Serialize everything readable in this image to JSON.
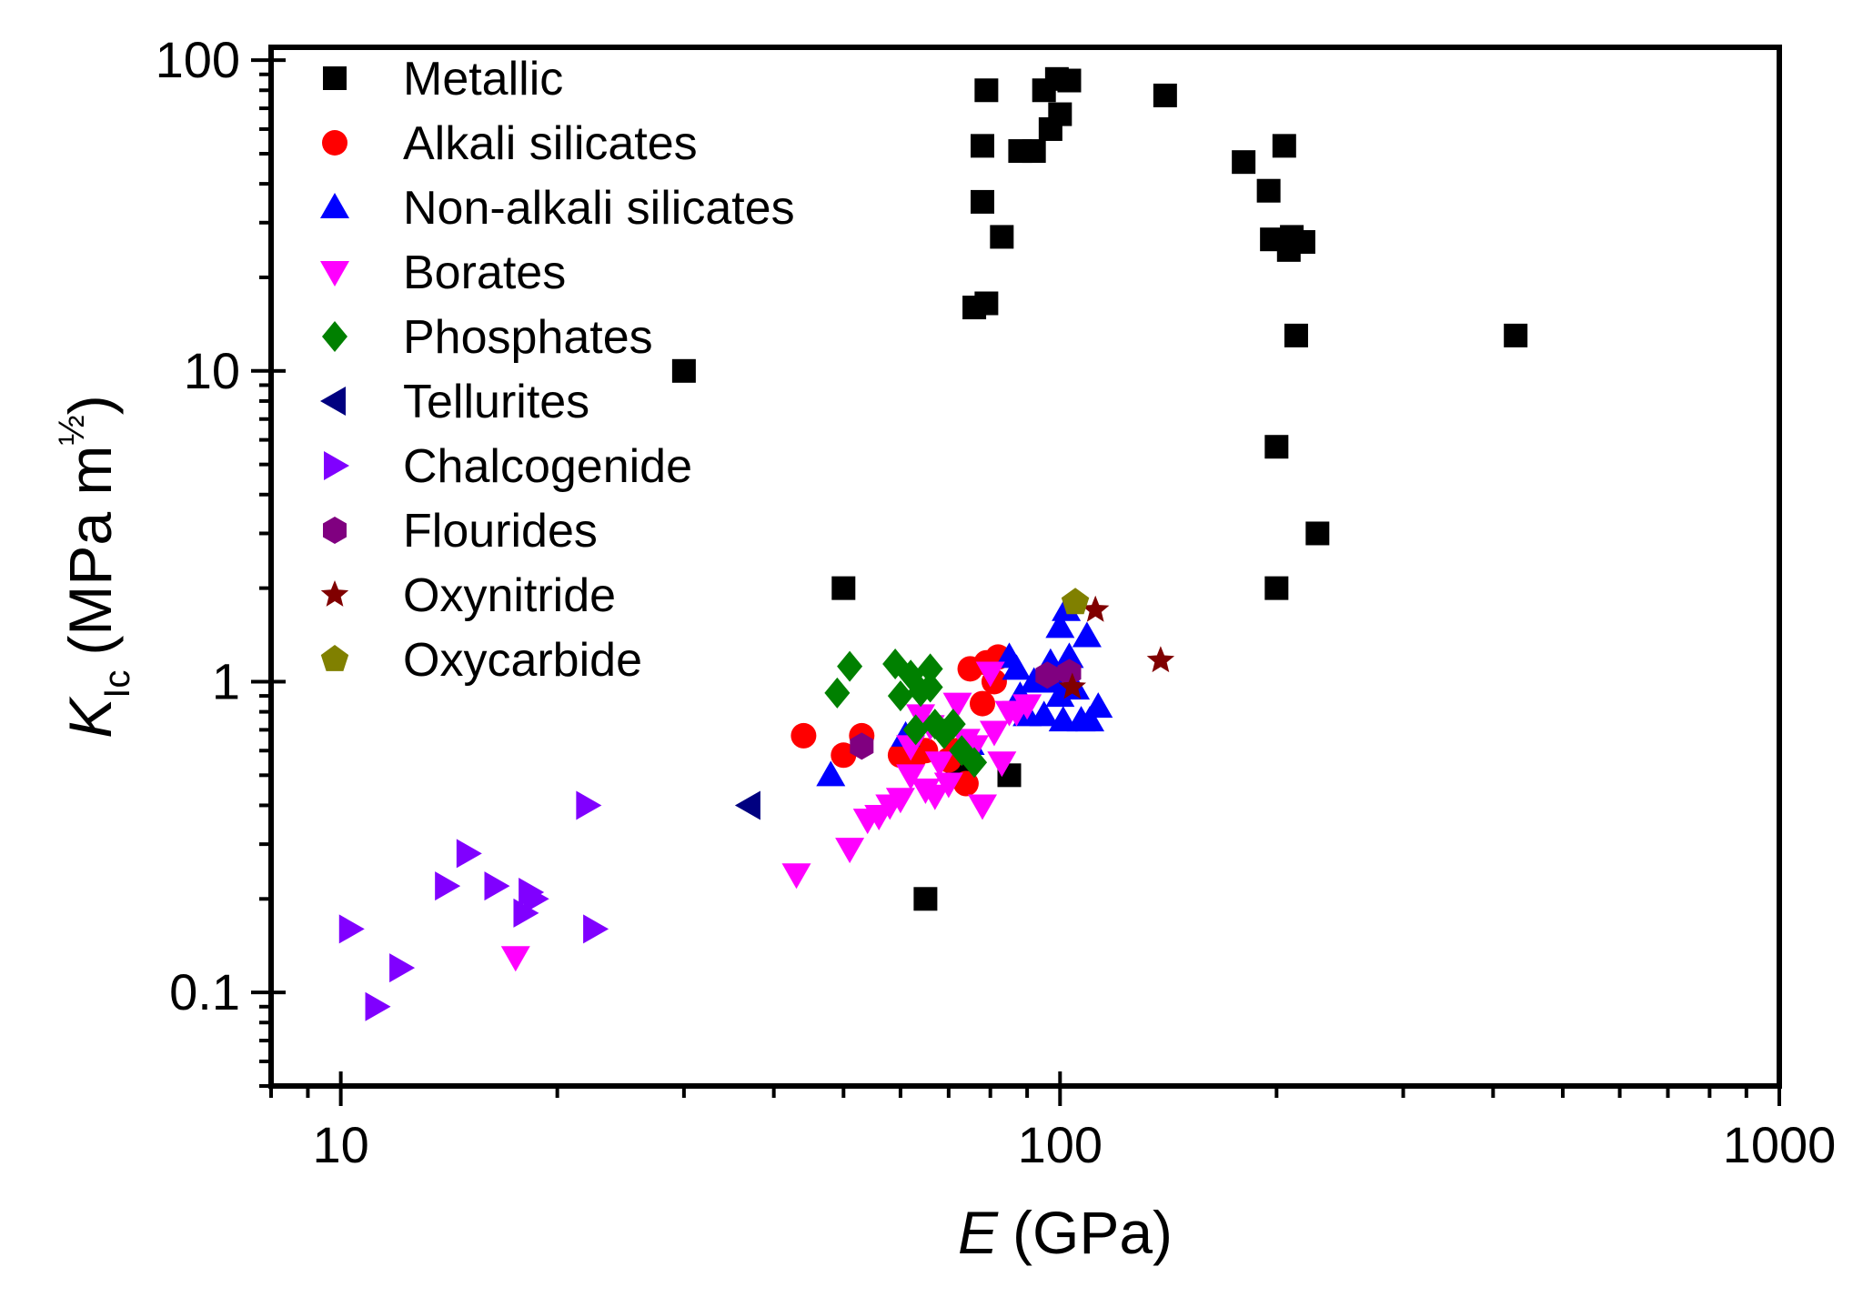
{
  "chart_data": {
    "type": "scatter",
    "title": "",
    "x_scale": "log",
    "y_scale": "log",
    "xlim": [
      8,
      1000
    ],
    "ylim": [
      0.05,
      110
    ],
    "xlabel": {
      "var": "E",
      "unit": "(GPa)"
    },
    "ylabel": {
      "var": "K",
      "sub": "Ic",
      "unit": "(MPa m",
      "exp": "½",
      "close": ")"
    },
    "x_ticks": [
      {
        "value": 10,
        "label": "10"
      },
      {
        "value": 100,
        "label": "100"
      },
      {
        "value": 1000,
        "label": "1000"
      }
    ],
    "y_ticks": [
      {
        "value": 0.1,
        "label": "0.1"
      },
      {
        "value": 1,
        "label": "1"
      },
      {
        "value": 10,
        "label": "10"
      },
      {
        "value": 100,
        "label": "100"
      }
    ],
    "legend_position": "top-left",
    "series": [
      {
        "name": "Metallic",
        "marker": "square",
        "color": "#000000",
        "points": [
          [
            30,
            10
          ],
          [
            50,
            2
          ],
          [
            65,
            0.2
          ],
          [
            76,
            16
          ],
          [
            79,
            16.5
          ],
          [
            78,
            35
          ],
          [
            78,
            53
          ],
          [
            79,
            80
          ],
          [
            83,
            27
          ],
          [
            88,
            51
          ],
          [
            92,
            51
          ],
          [
            95,
            80
          ],
          [
            97,
            60
          ],
          [
            99,
            87
          ],
          [
            100,
            67
          ],
          [
            103,
            86
          ],
          [
            140,
            77
          ],
          [
            180,
            47
          ],
          [
            195,
            38
          ],
          [
            197,
            26.5
          ],
          [
            200,
            5.7
          ],
          [
            200,
            2
          ],
          [
            205,
            53
          ],
          [
            208,
            24.5
          ],
          [
            210,
            27
          ],
          [
            213,
            13
          ],
          [
            218,
            26
          ],
          [
            228,
            3
          ],
          [
            430,
            13
          ],
          [
            85,
            0.5
          ],
          [
            72,
            0.55
          ]
        ]
      },
      {
        "name": "Alkali silicates",
        "marker": "circle",
        "color": "#ff0000",
        "points": [
          [
            44,
            0.67
          ],
          [
            50,
            0.58
          ],
          [
            53,
            0.67
          ],
          [
            60,
            0.58
          ],
          [
            63,
            0.58
          ],
          [
            65,
            0.6
          ],
          [
            70,
            0.56
          ],
          [
            72,
            0.6
          ],
          [
            74,
            0.47
          ],
          [
            75,
            1.1
          ],
          [
            78,
            0.85
          ],
          [
            79,
            1.15
          ],
          [
            81,
            1.0
          ],
          [
            82,
            1.2
          ]
        ]
      },
      {
        "name": "Non-alkali silicates",
        "marker": "triangle-up",
        "color": "#0000ff",
        "points": [
          [
            48,
            0.5
          ],
          [
            61,
            0.67
          ],
          [
            75,
            0.63
          ],
          [
            85,
            1.2
          ],
          [
            87,
            1.1
          ],
          [
            88,
            0.9
          ],
          [
            90,
            0.78
          ],
          [
            92,
            1.0
          ],
          [
            95,
            0.78
          ],
          [
            97,
            1.15
          ],
          [
            98,
            1.0
          ],
          [
            100,
            1.5
          ],
          [
            101,
            0.75
          ],
          [
            102,
            1.7
          ],
          [
            103,
            1.2
          ],
          [
            105,
            0.95
          ],
          [
            107,
            0.75
          ],
          [
            109,
            1.4
          ],
          [
            110,
            0.75
          ],
          [
            113,
            0.83
          ],
          [
            95,
            1.05
          ],
          [
            100,
            0.9
          ]
        ]
      },
      {
        "name": "Borates",
        "marker": "triangle-down",
        "color": "#ff00ff",
        "points": [
          [
            17.5,
            0.13
          ],
          [
            43,
            0.24
          ],
          [
            51,
            0.29
          ],
          [
            54,
            0.36
          ],
          [
            56,
            0.37
          ],
          [
            58,
            0.4
          ],
          [
            60,
            0.42
          ],
          [
            62,
            0.5
          ],
          [
            64,
            0.78
          ],
          [
            65,
            0.45
          ],
          [
            67,
            0.43
          ],
          [
            68,
            0.55
          ],
          [
            70,
            0.47
          ],
          [
            72,
            0.85
          ],
          [
            74,
            0.65
          ],
          [
            76,
            0.62
          ],
          [
            78,
            0.4
          ],
          [
            80,
            1.07
          ],
          [
            81,
            0.69
          ],
          [
            83,
            0.55
          ],
          [
            85,
            0.8
          ],
          [
            87,
            0.8
          ],
          [
            90,
            0.84
          ],
          [
            66,
            0.72
          ],
          [
            62,
            0.62
          ]
        ]
      },
      {
        "name": "Phosphates",
        "marker": "diamond",
        "color": "#008000",
        "points": [
          [
            49,
            0.92
          ],
          [
            51,
            1.12
          ],
          [
            59,
            1.14
          ],
          [
            60,
            0.9
          ],
          [
            62,
            1.05
          ],
          [
            63,
            0.7
          ],
          [
            64,
            0.93
          ],
          [
            66,
            0.96
          ],
          [
            66,
            1.1
          ],
          [
            67,
            0.73
          ],
          [
            69,
            0.68
          ],
          [
            71,
            0.73
          ],
          [
            73,
            0.6
          ],
          [
            76,
            0.55
          ]
        ]
      },
      {
        "name": "Tellurites",
        "marker": "triangle-left",
        "color": "#000080",
        "points": [
          [
            37,
            0.4
          ]
        ]
      },
      {
        "name": "Chalcogenide",
        "marker": "triangle-right",
        "color": "#8000ff",
        "points": [
          [
            10.3,
            0.16
          ],
          [
            11.2,
            0.09
          ],
          [
            12.1,
            0.12
          ],
          [
            14,
            0.22
          ],
          [
            15,
            0.28
          ],
          [
            16.4,
            0.22
          ],
          [
            18,
            0.18
          ],
          [
            18.3,
            0.21
          ],
          [
            18.6,
            0.2
          ],
          [
            22,
            0.4
          ],
          [
            22.5,
            0.16
          ]
        ]
      },
      {
        "name": "Flourides",
        "marker": "hexagon",
        "color": "#800080",
        "points": [
          [
            53,
            0.62
          ],
          [
            96,
            1.05
          ],
          [
            103,
            1.07
          ]
        ]
      },
      {
        "name": "Oxynitride",
        "marker": "star",
        "color": "#800000",
        "points": [
          [
            104,
            0.96
          ],
          [
            112,
            1.7
          ],
          [
            138,
            1.17
          ]
        ]
      },
      {
        "name": "Oxycarbide",
        "marker": "pentagon",
        "color": "#808000",
        "points": [
          [
            105,
            1.8
          ]
        ]
      }
    ]
  }
}
